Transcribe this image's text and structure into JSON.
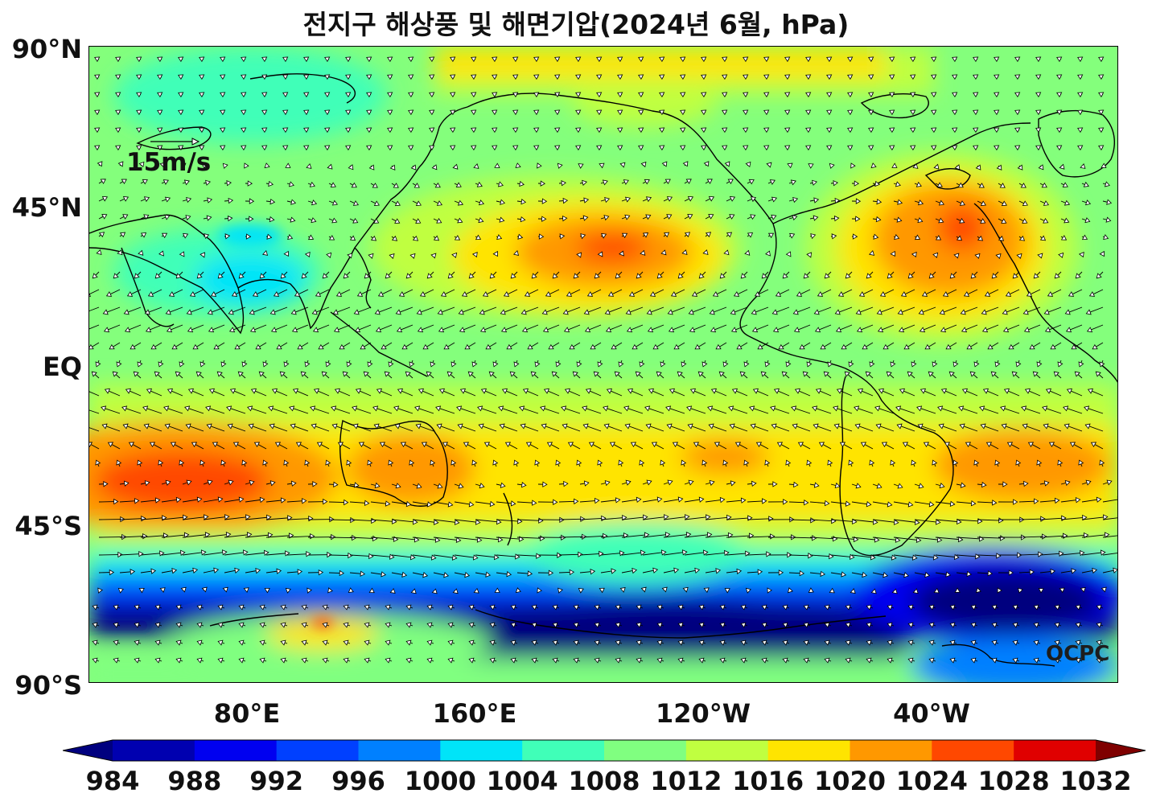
{
  "title": "전지구 해상풍 및 해면기압(2024년 6월, hPa)",
  "y_axis": {
    "ticks": [
      "90°N",
      "45°N",
      "EQ",
      "45°S",
      "90°S"
    ]
  },
  "x_axis": {
    "ticks": [
      "80°E",
      "160°E",
      "120°W",
      "40°W"
    ]
  },
  "wind_reference": {
    "label": "15m/s"
  },
  "logo": {
    "text": "OCPC"
  },
  "colorbar": {
    "tick_labels": [
      "984",
      "988",
      "992",
      "996",
      "1000",
      "1004",
      "1008",
      "1012",
      "1016",
      "1020",
      "1024",
      "1028",
      "1032"
    ],
    "colors": [
      "#00007f",
      "#0000b0",
      "#0000f0",
      "#0040ff",
      "#0080ff",
      "#00e4f8",
      "#40ffb8",
      "#80ff80",
      "#c0ff40",
      "#ffe400",
      "#ff9800",
      "#ff4800",
      "#e00000",
      "#7f0000"
    ]
  }
}
